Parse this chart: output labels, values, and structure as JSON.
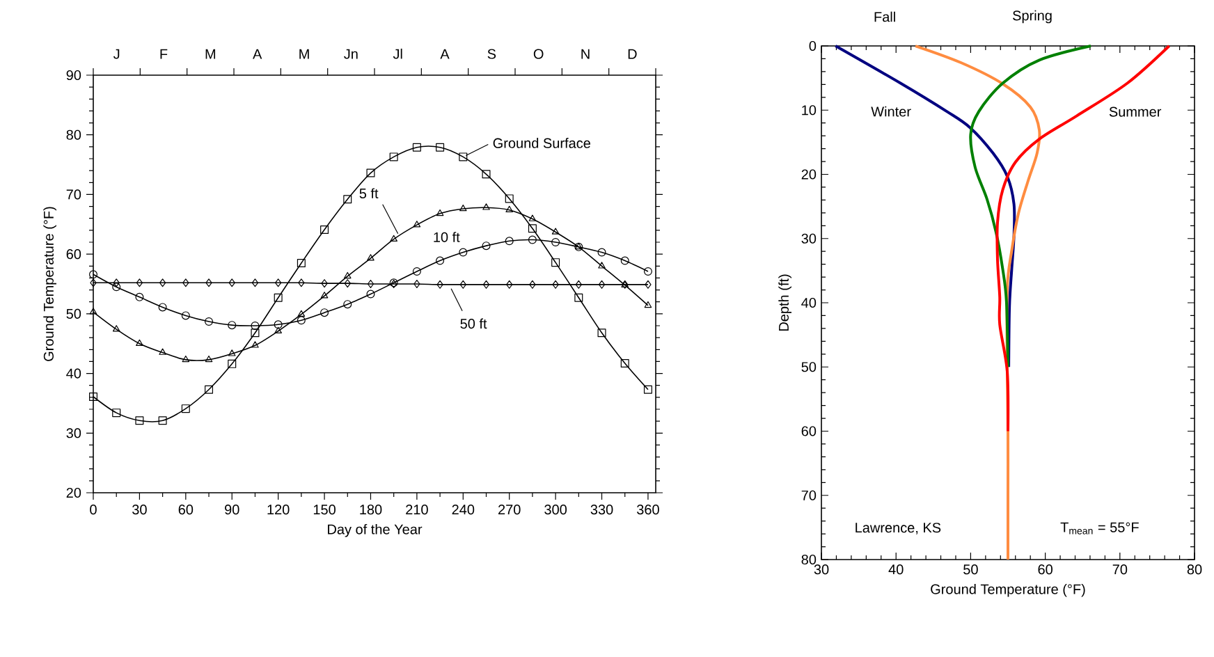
{
  "chart_data": [
    {
      "type": "line",
      "xlabel": "Day of the Year",
      "ylabel": "Ground Temperature (°F)",
      "grid": false,
      "x": [
        0,
        15,
        30,
        45,
        60,
        75,
        90,
        105,
        120,
        135,
        150,
        165,
        180,
        195,
        210,
        225,
        240,
        255,
        270,
        285,
        300,
        315,
        330,
        345,
        360
      ],
      "xlim": [
        0,
        365
      ],
      "xticks": [
        0,
        30,
        60,
        90,
        120,
        150,
        180,
        210,
        240,
        270,
        300,
        330,
        360
      ],
      "ylim": [
        20,
        90
      ],
      "yticks": [
        20,
        30,
        40,
        50,
        60,
        70,
        80,
        90
      ],
      "annotations": [
        "J",
        "F",
        "M",
        "A",
        "M",
        "Jn",
        "Jl",
        "A",
        "S",
        "O",
        "N",
        "D"
      ],
      "series": [
        {
          "name": "Ground Surface",
          "color": "#000000",
          "marker": "square",
          "values": [
            36.1,
            33.4,
            32.1,
            32.1,
            34.1,
            37.3,
            41.6,
            46.8,
            52.7,
            58.5,
            64.1,
            69.2,
            73.6,
            76.3,
            77.9,
            77.9,
            76.3,
            73.4,
            69.3,
            64.3,
            58.6,
            52.7,
            46.8,
            41.7,
            37.3
          ]
        },
        {
          "name": "5 ft",
          "color": "#000000",
          "marker": "triangle",
          "values": [
            50.3,
            47.4,
            45.0,
            43.5,
            42.3,
            42.3,
            43.3,
            44.7,
            47.1,
            49.9,
            53.0,
            56.3,
            59.3,
            62.5,
            64.9,
            66.8,
            67.6,
            67.8,
            67.4,
            65.9,
            63.7,
            61.2,
            58.0,
            54.8,
            51.4
          ]
        },
        {
          "name": "10 ft",
          "color": "#000000",
          "marker": "circle",
          "values": [
            56.6,
            54.5,
            52.8,
            51.1,
            49.7,
            48.7,
            48.1,
            48.0,
            48.2,
            48.9,
            50.2,
            51.6,
            53.3,
            55.2,
            57.1,
            58.9,
            60.3,
            61.4,
            62.2,
            62.4,
            62.0,
            61.2,
            60.3,
            58.9,
            57.1
          ]
        },
        {
          "name": "50 ft",
          "color": "#000000",
          "marker": "diamond",
          "values": [
            55.2,
            55.2,
            55.2,
            55.2,
            55.2,
            55.2,
            55.2,
            55.2,
            55.2,
            55.2,
            55.1,
            55.1,
            55.0,
            55.0,
            55.0,
            54.9,
            54.9,
            54.9,
            54.9,
            54.9,
            54.9,
            54.9,
            54.9,
            54.9,
            54.9
          ]
        }
      ]
    },
    {
      "type": "line",
      "xlabel": "Ground Temperature (°F)",
      "ylabel": "Depth (ft)",
      "grid": false,
      "xlim": [
        30,
        80
      ],
      "xticks": [
        30,
        40,
        50,
        60,
        70,
        80
      ],
      "ylim": [
        80,
        0
      ],
      "yticks": [
        0,
        10,
        20,
        30,
        40,
        50,
        60,
        70,
        80
      ],
      "tick_labels": "xy",
      "annotations": [
        "Lawrence, KS",
        "T$_{mean}$ = 55°F"
      ],
      "series": [
        {
          "name": "Winter",
          "color": "#000080",
          "x": [
            31.9,
            40.6,
            46.8,
            49.9,
            53.0,
            54.9,
            55.8,
            55.8,
            55.5,
            55.2,
            55.1
          ],
          "values": [
            0,
            5.8,
            10.2,
            12.7,
            16.7,
            20.3,
            24.6,
            29.7,
            34.8,
            40.5,
            50
          ]
        },
        {
          "name": "Fall",
          "color": "#ff8c40",
          "x": [
            42.6,
            48.7,
            54.3,
            58.0,
            59.2,
            58.9,
            57.7,
            56.4,
            55.5,
            54.9,
            54.9,
            55.0,
            55.0,
            55.0
          ],
          "values": [
            0,
            2.6,
            5.9,
            9.5,
            13.1,
            16.7,
            21.0,
            26.1,
            31.9,
            37.7,
            50,
            60,
            70,
            80
          ]
        },
        {
          "name": "Spring",
          "color": "#008000",
          "x": [
            66.1,
            59.2,
            54.3,
            51.1,
            50.0,
            50.6,
            52.2,
            53.4,
            54.3,
            54.8,
            55.0
          ],
          "values": [
            0,
            2.2,
            5.8,
            10.2,
            13.8,
            18.9,
            23.9,
            29.0,
            34.8,
            39.8,
            50
          ]
        },
        {
          "name": "Summer",
          "color": "#ff0000",
          "x": [
            76.6,
            71.0,
            64.2,
            59.2,
            56.0,
            54.3,
            53.6,
            53.6,
            53.9,
            53.9,
            54.9,
            55.0
          ],
          "values": [
            0,
            5.8,
            10.9,
            14.5,
            18.1,
            22.4,
            27.5,
            33.3,
            39.1,
            43.4,
            50.7,
            60
          ]
        }
      ]
    }
  ]
}
